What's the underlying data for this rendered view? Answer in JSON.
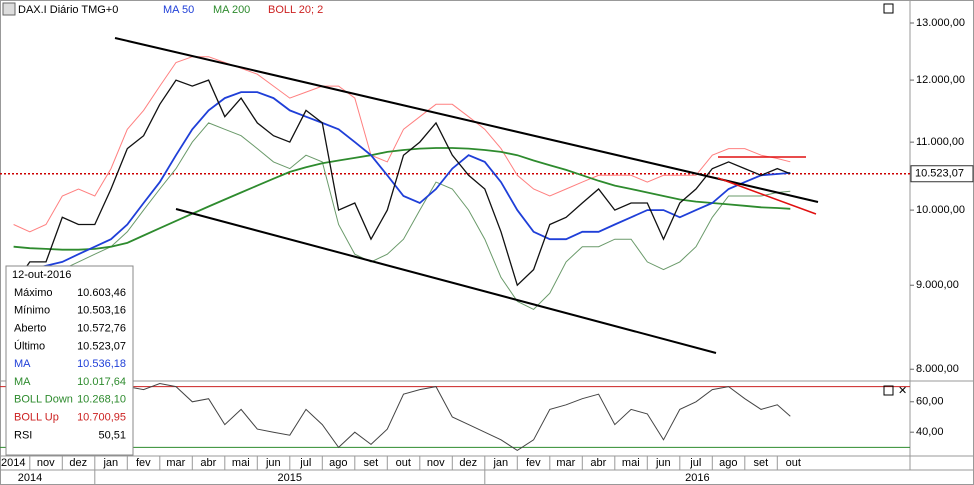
{
  "chart_data": [
    {
      "type": "line",
      "title": "DAX.I Diário TMG+0",
      "log_scale": true,
      "x": [
        0.5,
        1,
        1.5,
        2,
        2.5,
        3,
        3.5,
        4,
        4.5,
        5,
        5.5,
        6,
        6.5,
        7,
        7.5,
        8,
        8.5,
        9,
        9.5,
        10,
        10.5,
        11,
        11.5,
        12,
        12.5,
        13,
        13.5,
        14,
        14.5,
        15,
        15.5,
        16,
        16.5,
        17,
        17.5,
        18,
        18.5,
        19,
        19.5,
        20,
        20.5,
        21,
        21.5,
        22,
        22.5,
        23,
        23.5,
        24,
        24.4
      ],
      "xlim": [
        0.08,
        28.08
      ],
      "xticks": [
        {
          "value": 0,
          "label": "2014"
        },
        {
          "value": 1,
          "label": "nov"
        },
        {
          "value": 2,
          "label": "dez"
        },
        {
          "value": 3,
          "label": "jan"
        },
        {
          "value": 4,
          "label": "fev"
        },
        {
          "value": 5,
          "label": "mar"
        },
        {
          "value": 6,
          "label": "abr"
        },
        {
          "value": 7,
          "label": "mai"
        },
        {
          "value": 8,
          "label": "jun"
        },
        {
          "value": 9,
          "label": "jul"
        },
        {
          "value": 10,
          "label": "ago"
        },
        {
          "value": 11,
          "label": "set"
        },
        {
          "value": 12,
          "label": "out"
        },
        {
          "value": 13,
          "label": "nov"
        },
        {
          "value": 14,
          "label": "dez"
        },
        {
          "value": 15,
          "label": "jan"
        },
        {
          "value": 16,
          "label": "fev"
        },
        {
          "value": 17,
          "label": "mar"
        },
        {
          "value": 18,
          "label": "abr"
        },
        {
          "value": 19,
          "label": "mai"
        },
        {
          "value": 20,
          "label": "jun"
        },
        {
          "value": 21,
          "label": "jul"
        },
        {
          "value": 22,
          "label": "ago"
        },
        {
          "value": 23,
          "label": "set"
        },
        {
          "value": 24,
          "label": "out"
        }
      ],
      "year_ticks": [
        {
          "value": 0.08,
          "label": "2014"
        },
        {
          "value": 3,
          "label": "2015"
        },
        {
          "value": 15,
          "label": "2016"
        }
      ],
      "ylim": [
        7880,
        13370
      ],
      "yticks": [
        {
          "value": 8000,
          "label": "8.000,00"
        },
        {
          "value": 9000,
          "label": "9.000,00"
        },
        {
          "value": 10000,
          "label": "10.000,00"
        },
        {
          "value": 11000,
          "label": "11.000,00"
        },
        {
          "value": 12000,
          "label": "12.000,00"
        },
        {
          "value": 13000,
          "label": "13.000,00"
        }
      ],
      "last_price": {
        "value": 10523.07,
        "label": "10.523,07"
      },
      "series": [
        {
          "color": "#ff8080",
          "values": [
            9800,
            9700,
            9800,
            10200,
            10300,
            10200,
            10600,
            11200,
            11500,
            11900,
            12300,
            12400,
            12400,
            12300,
            12200,
            12100,
            11900,
            11700,
            11800,
            11900,
            11900,
            11700,
            10800,
            10700,
            11200,
            11400,
            11600,
            11600,
            11400,
            11200,
            10900,
            10500,
            10300,
            10200,
            10300,
            10400,
            10500,
            10500,
            10500,
            10400,
            10500,
            10500,
            10500,
            10800,
            10900,
            10900,
            10800,
            10750,
            10700.95
          ]
        },
        {
          "color": "#6a9a6a",
          "values": [
            8800,
            8900,
            9000,
            9200,
            9300,
            9400,
            9500,
            9700,
            10000,
            10300,
            10600,
            11000,
            11300,
            11200,
            11100,
            10900,
            10700,
            10600,
            10800,
            10700,
            9800,
            9400,
            9300,
            9400,
            9600,
            10000,
            10400,
            10300,
            10000,
            9600,
            9100,
            8800,
            8700,
            8900,
            9300,
            9500,
            9500,
            9600,
            9600,
            9300,
            9200,
            9300,
            9500,
            9900,
            10200,
            10200,
            10200,
            10250,
            10268.1
          ]
        },
        {
          "name": "MA 200",
          "color": "#2e8b2e",
          "values": [
            9500,
            9480,
            9470,
            9460,
            9460,
            9470,
            9500,
            9550,
            9650,
            9750,
            9850,
            9950,
            10050,
            10150,
            10250,
            10350,
            10450,
            10550,
            10620,
            10680,
            10720,
            10760,
            10800,
            10850,
            10880,
            10900,
            10910,
            10910,
            10900,
            10880,
            10850,
            10800,
            10720,
            10650,
            10580,
            10500,
            10420,
            10350,
            10300,
            10250,
            10200,
            10150,
            10120,
            10100,
            10080,
            10060,
            10040,
            10030,
            10017.64
          ]
        },
        {
          "name": "MA 50",
          "color": "#1f3fd8",
          "values": [
            9200,
            9200,
            9250,
            9300,
            9400,
            9500,
            9600,
            9800,
            10100,
            10400,
            10800,
            11200,
            11500,
            11700,
            11800,
            11800,
            11700,
            11500,
            11400,
            11300,
            11200,
            11000,
            10800,
            10500,
            10200,
            10100,
            10300,
            10600,
            10800,
            10700,
            10400,
            10000,
            9700,
            9600,
            9600,
            9700,
            9700,
            9800,
            9900,
            10000,
            10000,
            9900,
            10000,
            10100,
            10300,
            10400,
            10500,
            10520,
            10536.18
          ]
        },
        {
          "color": "#111111",
          "values": [
            9000,
            9300,
            9300,
            9900,
            9800,
            9800,
            10300,
            10900,
            11100,
            11600,
            12000,
            11900,
            12000,
            11400,
            11700,
            11300,
            11100,
            11000,
            11500,
            11300,
            10000,
            10100,
            9600,
            10000,
            10800,
            11000,
            11300,
            10800,
            10500,
            10300,
            9700,
            9000,
            9200,
            9800,
            9900,
            10100,
            10300,
            10000,
            10100,
            10100,
            9600,
            10100,
            10300,
            10600,
            10700,
            10600,
            10500,
            10600,
            10523.07
          ]
        }
      ],
      "bollinger_label": "BOLL 20; 2"
    },
    {
      "type": "line",
      "x": [
        0.5,
        1,
        1.5,
        2,
        2.5,
        3,
        3.5,
        4,
        4.5,
        5,
        5.5,
        6,
        6.5,
        7,
        7.5,
        8,
        8.5,
        9,
        9.5,
        10,
        10.5,
        11,
        11.5,
        12,
        12.5,
        13,
        13.5,
        14,
        14.5,
        15,
        15.5,
        16,
        16.5,
        17,
        17.5,
        18,
        18.5,
        19,
        19.5,
        20,
        20.5,
        21,
        21.5,
        22,
        22.5,
        23,
        23.5,
        24,
        24.4
      ],
      "ylim": [
        25,
        73
      ],
      "yticks": [
        {
          "value": 40,
          "label": "40,00"
        },
        {
          "value": 60,
          "label": "60,00"
        }
      ],
      "levels": [
        {
          "value": 70,
          "color": "#cc2222"
        },
        {
          "value": 30,
          "color": "#2e8b2e"
        }
      ],
      "series": [
        {
          "color": "#444444",
          "values": [
            45,
            55,
            50,
            62,
            55,
            52,
            65,
            70,
            68,
            72,
            70,
            60,
            62,
            45,
            55,
            42,
            40,
            38,
            55,
            45,
            30,
            40,
            32,
            42,
            65,
            68,
            70,
            50,
            45,
            40,
            35,
            28,
            35,
            55,
            58,
            62,
            65,
            45,
            55,
            52,
            35,
            55,
            60,
            68,
            70,
            62,
            55,
            58,
            50.51
          ]
        }
      ]
    }
  ],
  "info_box": {
    "date": "12-out-2016",
    "rows": [
      [
        "Máximo",
        "10.603,46"
      ],
      [
        "Mínimo",
        "10.503,16"
      ],
      [
        "Aberto",
        "10.572,76"
      ],
      [
        "Último",
        "10.523,07"
      ],
      [
        "MA",
        "10.536,18"
      ],
      [
        "MA",
        "10.017,64"
      ],
      [
        "BOLL Down",
        "10.268,10"
      ],
      [
        "BOLL Up",
        "10.700,95"
      ],
      [
        "RSI",
        "50,51"
      ]
    ]
  }
}
